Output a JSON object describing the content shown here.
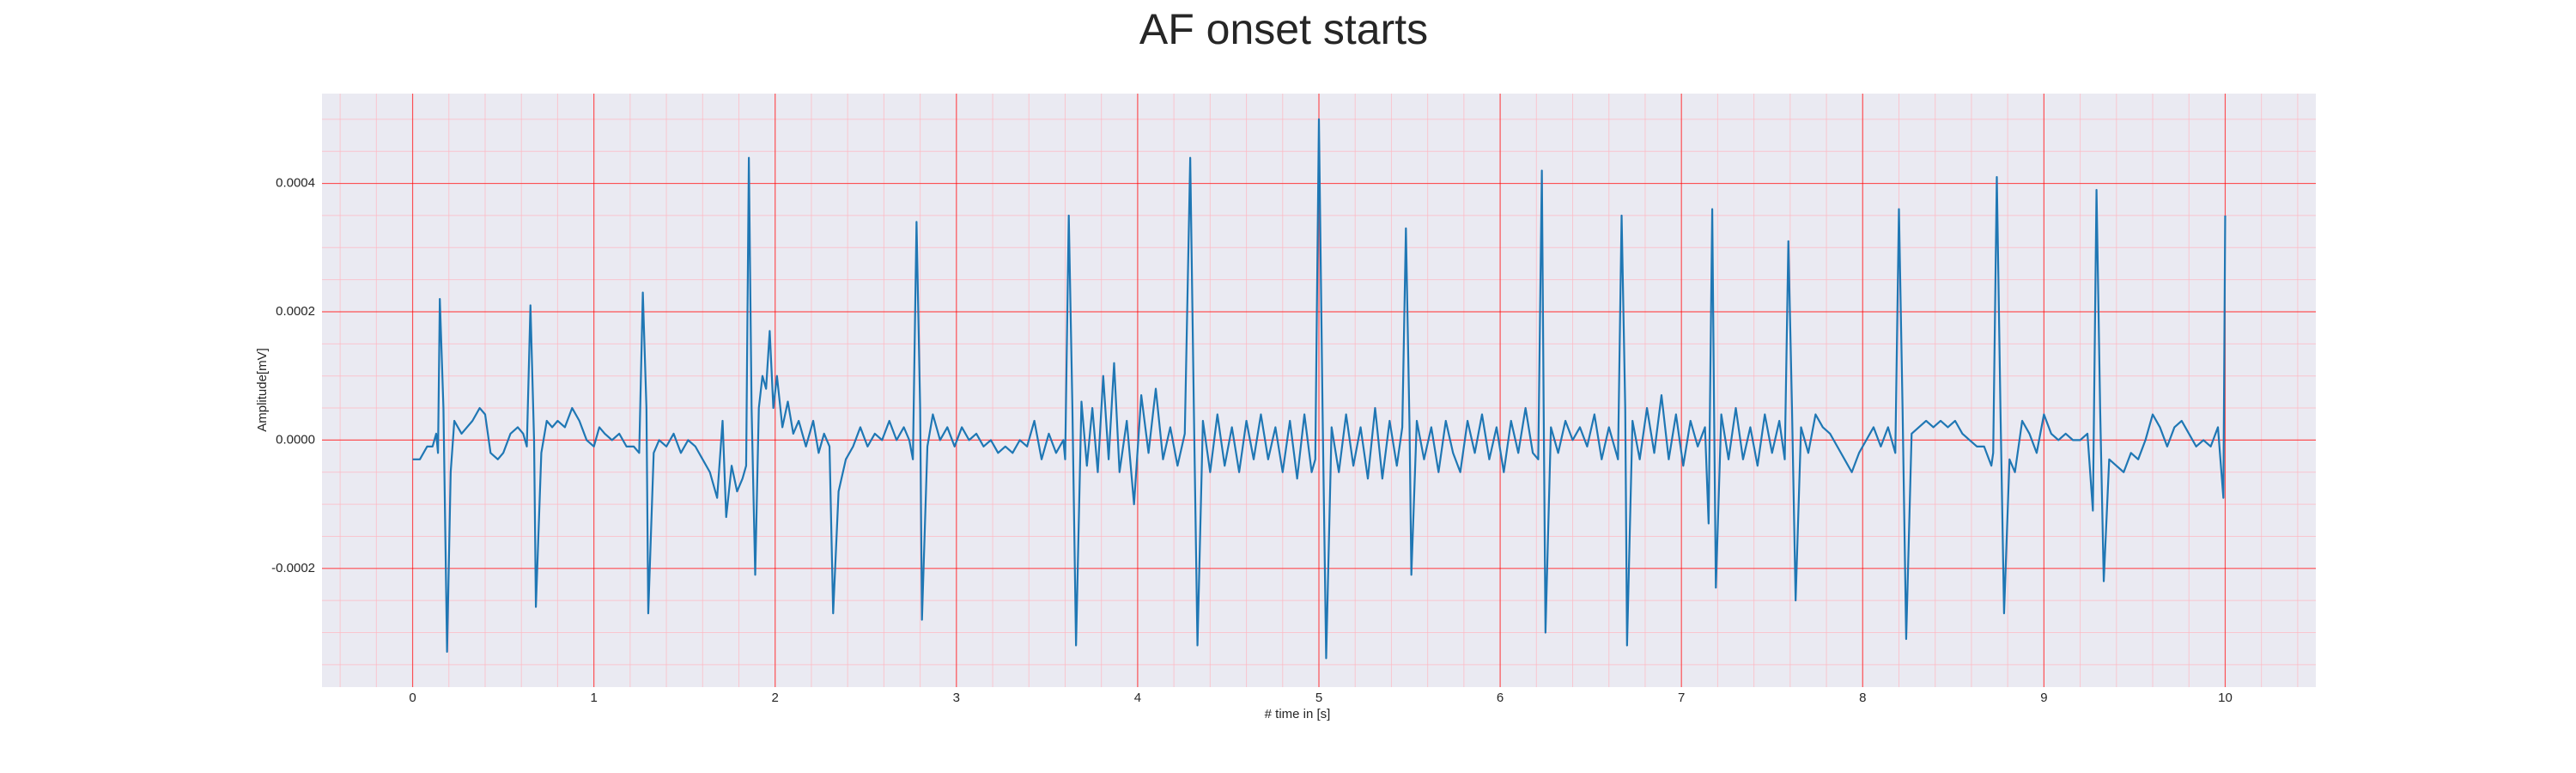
{
  "chart_data": {
    "type": "line",
    "title": "AF onset starts",
    "xlabel": "# time in [s]",
    "ylabel": "Amplitude[mV]",
    "x": [
      0,
      0.04,
      0.08,
      0.11,
      0.13,
      0.14,
      0.15,
      0.17,
      0.19,
      0.21,
      0.23,
      0.27,
      0.3,
      0.33,
      0.37,
      0.4,
      0.43,
      0.47,
      0.5,
      0.54,
      0.58,
      0.61,
      0.63,
      0.65,
      0.67,
      0.68,
      0.71,
      0.74,
      0.77,
      0.8,
      0.84,
      0.88,
      0.92,
      0.96,
      1,
      1.03,
      1.06,
      1.1,
      1.14,
      1.18,
      1.22,
      1.25,
      1.27,
      1.29,
      1.3,
      1.33,
      1.36,
      1.4,
      1.44,
      1.48,
      1.52,
      1.56,
      1.6,
      1.64,
      1.68,
      1.71,
      1.73,
      1.76,
      1.79,
      1.82,
      1.84,
      1.855,
      1.87,
      1.89,
      1.91,
      1.93,
      1.95,
      1.97,
      1.99,
      2.01,
      2.04,
      2.07,
      2.1,
      2.13,
      2.17,
      2.21,
      2.24,
      2.27,
      2.3,
      2.32,
      2.35,
      2.39,
      2.43,
      2.47,
      2.51,
      2.55,
      2.59,
      2.63,
      2.67,
      2.71,
      2.74,
      2.76,
      2.78,
      2.8,
      2.81,
      2.84,
      2.87,
      2.91,
      2.95,
      2.99,
      3.03,
      3.07,
      3.11,
      3.15,
      3.19,
      3.23,
      3.27,
      3.31,
      3.35,
      3.39,
      3.43,
      3.47,
      3.51,
      3.55,
      3.59,
      3.6,
      3.62,
      3.64,
      3.66,
      3.69,
      3.72,
      3.75,
      3.78,
      3.81,
      3.84,
      3.87,
      3.9,
      3.94,
      3.98,
      4.02,
      4.06,
      4.1,
      4.14,
      4.18,
      4.22,
      4.26,
      4.29,
      4.31,
      4.33,
      4.36,
      4.4,
      4.44,
      4.48,
      4.52,
      4.56,
      4.6,
      4.64,
      4.68,
      4.72,
      4.76,
      4.8,
      4.84,
      4.88,
      4.92,
      4.96,
      4.98,
      5,
      5.02,
      5.04,
      5.07,
      5.11,
      5.15,
      5.19,
      5.23,
      5.27,
      5.31,
      5.35,
      5.39,
      5.43,
      5.46,
      5.48,
      5.5,
      5.51,
      5.54,
      5.58,
      5.62,
      5.66,
      5.7,
      5.74,
      5.78,
      5.82,
      5.86,
      5.9,
      5.94,
      5.98,
      6.02,
      6.06,
      6.1,
      6.14,
      6.18,
      6.21,
      6.23,
      6.24,
      6.25,
      6.28,
      6.32,
      6.36,
      6.4,
      6.44,
      6.48,
      6.52,
      6.56,
      6.6,
      6.64,
      6.65,
      6.67,
      6.69,
      6.7,
      6.73,
      6.77,
      6.81,
      6.85,
      6.89,
      6.93,
      6.97,
      7.01,
      7.05,
      7.09,
      7.13,
      7.15,
      7.17,
      7.18,
      7.19,
      7.22,
      7.26,
      7.3,
      7.34,
      7.38,
      7.42,
      7.46,
      7.5,
      7.54,
      7.57,
      7.59,
      7.61,
      7.63,
      7.66,
      7.7,
      7.74,
      7.78,
      7.82,
      7.86,
      7.9,
      7.94,
      7.98,
      8.02,
      8.06,
      8.1,
      8.14,
      8.18,
      8.2,
      8.22,
      8.24,
      8.27,
      8.31,
      8.35,
      8.39,
      8.43,
      8.47,
      8.51,
      8.55,
      8.59,
      8.63,
      8.67,
      8.71,
      8.72,
      8.74,
      8.76,
      8.78,
      8.81,
      8.84,
      8.88,
      8.92,
      8.96,
      9,
      9.04,
      9.08,
      9.12,
      9.16,
      9.2,
      9.24,
      9.27,
      9.29,
      9.31,
      9.33,
      9.36,
      9.4,
      9.44,
      9.48,
      9.52,
      9.56,
      9.6,
      9.64,
      9.68,
      9.72,
      9.76,
      9.8,
      9.84,
      9.88,
      9.92,
      9.96,
      9.99,
      10
    ],
    "values": [
      -3e-05,
      -3e-05,
      -1e-05,
      -1e-05,
      1e-05,
      -2e-05,
      0.00022,
      5e-05,
      -0.00033,
      -5e-05,
      3e-05,
      1e-05,
      2e-05,
      3e-05,
      5e-05,
      4e-05,
      -2e-05,
      -3e-05,
      -2e-05,
      1e-05,
      2e-05,
      1e-05,
      -1e-05,
      0.00021,
      0,
      -0.00026,
      -2e-05,
      3e-05,
      2e-05,
      3e-05,
      2e-05,
      5e-05,
      3e-05,
      0,
      -1e-05,
      2e-05,
      1e-05,
      0,
      1e-05,
      -1e-05,
      -1e-05,
      -2e-05,
      0.00023,
      5e-05,
      -0.00027,
      -2e-05,
      0,
      -1e-05,
      1e-05,
      -2e-05,
      0,
      -1e-05,
      -3e-05,
      -5e-05,
      -9e-05,
      3e-05,
      -0.00012,
      -4e-05,
      -8e-05,
      -6e-05,
      -4e-05,
      0.00044,
      5e-05,
      -0.00021,
      5e-05,
      0.0001,
      8e-05,
      0.00017,
      5e-05,
      0.0001,
      2e-05,
      6e-05,
      1e-05,
      3e-05,
      -1e-05,
      3e-05,
      -2e-05,
      1e-05,
      -1e-05,
      -0.00027,
      -8e-05,
      -3e-05,
      -1e-05,
      2e-05,
      -1e-05,
      1e-05,
      0,
      3e-05,
      0,
      2e-05,
      0,
      -3e-05,
      0.00034,
      5e-05,
      -0.00028,
      -1e-05,
      4e-05,
      0,
      2e-05,
      -1e-05,
      2e-05,
      0,
      1e-05,
      -1e-05,
      0,
      -2e-05,
      -1e-05,
      -2e-05,
      0,
      -1e-05,
      3e-05,
      -3e-05,
      1e-05,
      -2e-05,
      0,
      -3e-05,
      0.00035,
      5e-05,
      -0.00032,
      6e-05,
      -4e-05,
      5e-05,
      -5e-05,
      0.0001,
      -3e-05,
      0.00012,
      -5e-05,
      3e-05,
      -0.0001,
      7e-05,
      -2e-05,
      8e-05,
      -3e-05,
      2e-05,
      -4e-05,
      1e-05,
      0.00044,
      5e-05,
      -0.00032,
      3e-05,
      -5e-05,
      4e-05,
      -4e-05,
      2e-05,
      -5e-05,
      3e-05,
      -3e-05,
      4e-05,
      -3e-05,
      2e-05,
      -5e-05,
      3e-05,
      -6e-05,
      4e-05,
      -5e-05,
      -3e-05,
      0.0005,
      5e-05,
      -0.00034,
      2e-05,
      -5e-05,
      4e-05,
      -4e-05,
      2e-05,
      -6e-05,
      5e-05,
      -6e-05,
      3e-05,
      -4e-05,
      2e-05,
      0.00033,
      2e-05,
      -0.00021,
      3e-05,
      -3e-05,
      2e-05,
      -5e-05,
      3e-05,
      -2e-05,
      -5e-05,
      3e-05,
      -2e-05,
      4e-05,
      -3e-05,
      2e-05,
      -5e-05,
      3e-05,
      -2e-05,
      5e-05,
      -2e-05,
      -3e-05,
      0.00042,
      5e-05,
      -0.0003,
      2e-05,
      -2e-05,
      3e-05,
      0,
      2e-05,
      -1e-05,
      4e-05,
      -3e-05,
      2e-05,
      -2e-05,
      -3e-05,
      0.00035,
      5e-05,
      -0.00032,
      3e-05,
      -3e-05,
      5e-05,
      -2e-05,
      7e-05,
      -3e-05,
      4e-05,
      -4e-05,
      3e-05,
      -1e-05,
      2e-05,
      -0.00013,
      0.00036,
      5e-05,
      -0.00023,
      4e-05,
      -3e-05,
      5e-05,
      -3e-05,
      2e-05,
      -4e-05,
      4e-05,
      -2e-05,
      3e-05,
      -3e-05,
      0.00031,
      5e-05,
      -0.00025,
      2e-05,
      -2e-05,
      4e-05,
      2e-05,
      1e-05,
      -1e-05,
      -3e-05,
      -5e-05,
      -2e-05,
      0,
      2e-05,
      -1e-05,
      2e-05,
      -2e-05,
      0.00036,
      5e-05,
      -0.00031,
      1e-05,
      2e-05,
      3e-05,
      2e-05,
      3e-05,
      2e-05,
      3e-05,
      1e-05,
      0,
      -1e-05,
      -1e-05,
      -4e-05,
      -2e-05,
      0.00041,
      5e-05,
      -0.00027,
      -3e-05,
      -5e-05,
      3e-05,
      1e-05,
      -2e-05,
      4e-05,
      1e-05,
      0,
      1e-05,
      0,
      0,
      1e-05,
      -0.00011,
      0.00039,
      5e-05,
      -0.00022,
      -3e-05,
      -4e-05,
      -5e-05,
      -2e-05,
      -3e-05,
      0,
      4e-05,
      2e-05,
      -1e-05,
      2e-05,
      3e-05,
      1e-05,
      -1e-05,
      0,
      -1e-05,
      2e-05,
      -9e-05,
      0.00035
    ],
    "color": "#1f77b4",
    "xlim": [
      -0.5,
      10.5
    ],
    "xticks": [
      0,
      1,
      2,
      3,
      4,
      5,
      6,
      7,
      8,
      9,
      10
    ],
    "ylim": [
      -0.000385,
      0.00054
    ],
    "yticks": [
      -0.0002,
      {
        "value": 0,
        "label": "0.0000"
      },
      0.0002,
      0.0004
    ],
    "grid": true,
    "grid_color": "#ff0000",
    "minor_grid_color": "#ffb6c1",
    "xminor_step": 0.2,
    "yminor_step": 5e-05,
    "background": "#eaeaf2"
  }
}
